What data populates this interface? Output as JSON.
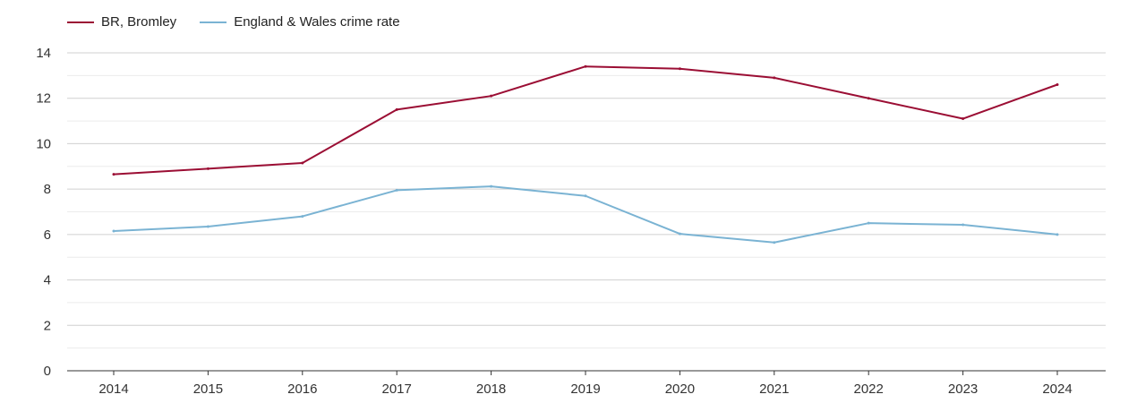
{
  "chart_data": {
    "type": "line",
    "title": "",
    "xlabel": "",
    "ylabel": "",
    "categories": [
      "2014",
      "2015",
      "2016",
      "2017",
      "2018",
      "2019",
      "2020",
      "2021",
      "2022",
      "2023",
      "2024"
    ],
    "ylim": [
      0,
      14
    ],
    "yticks": [
      0,
      2,
      4,
      6,
      8,
      10,
      12,
      14
    ],
    "grid": true,
    "legend_position": "top-left",
    "series": [
      {
        "name": "BR, Bromley",
        "color": "#9b0e34",
        "values": [
          8.65,
          8.9,
          9.15,
          11.5,
          12.1,
          13.4,
          13.3,
          12.9,
          12.0,
          11.1,
          12.6
        ]
      },
      {
        "name": "England & Wales crime rate",
        "color": "#7ab3d3",
        "values": [
          6.15,
          6.35,
          6.8,
          7.95,
          8.12,
          7.7,
          6.03,
          5.65,
          6.5,
          6.43,
          6.0
        ]
      }
    ]
  }
}
